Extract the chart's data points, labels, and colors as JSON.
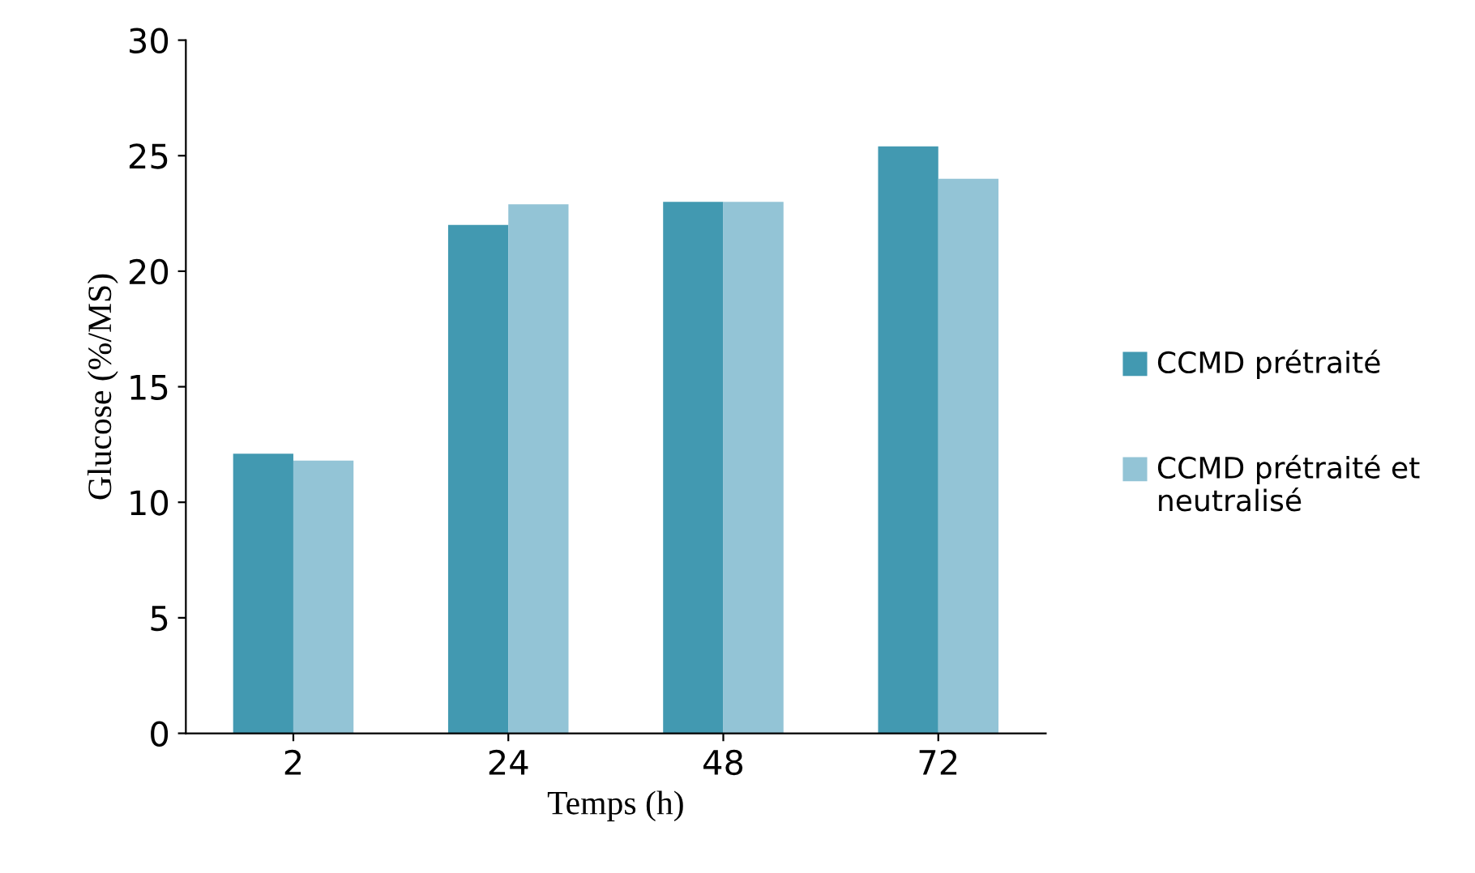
{
  "chart_data": {
    "type": "bar",
    "xlabel": "Temps (h)",
    "ylabel": "Glucose (%/MS)",
    "categories": [
      "2",
      "24",
      "48",
      "72"
    ],
    "series": [
      {
        "name": "CCMD prétraité",
        "color": "#4299b1",
        "values": [
          12.1,
          22.0,
          23.0,
          25.4
        ]
      },
      {
        "name": "CCMD prétraité et neutralisé",
        "color": "#93c4d6",
        "values": [
          11.8,
          22.9,
          23.0,
          24.0
        ]
      }
    ],
    "ylim": [
      0,
      30
    ],
    "yticks": [
      0,
      5,
      10,
      15,
      20,
      25,
      30
    ],
    "grid": false,
    "legend": "right"
  }
}
